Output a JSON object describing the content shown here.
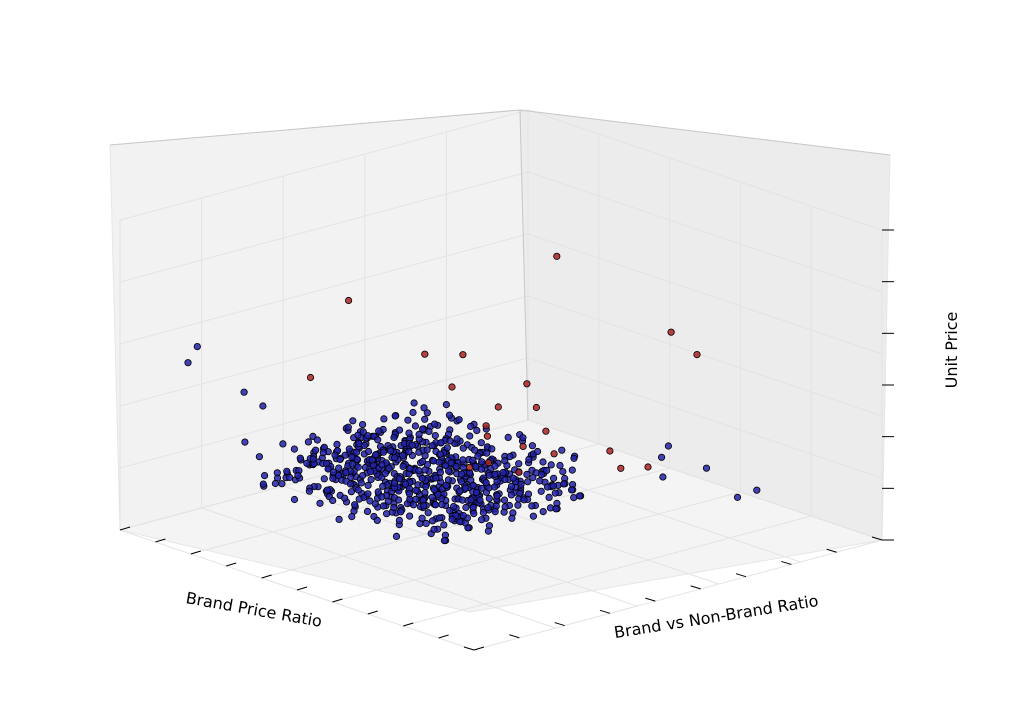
{
  "chart_data": {
    "type": "scatter",
    "projection": "3d",
    "xlabel": "Brand Price Ratio",
    "ylabel": "Brand vs Non-Brand Ratio",
    "zlabel": "Unit Price",
    "grid": true,
    "series": [
      {
        "color": "#2222aa",
        "count_estimate": 700,
        "cluster_points": [
          [
            0.55,
            0.25,
            0.12
          ],
          [
            0.5,
            0.3,
            0.1
          ],
          [
            0.6,
            0.35,
            0.14
          ],
          [
            0.45,
            0.28,
            0.13
          ],
          [
            0.58,
            0.42,
            0.16
          ],
          [
            0.4,
            0.2,
            0.11
          ]
        ],
        "scattered_points": [
          [
            0.92,
            0.1,
            0.55
          ],
          [
            0.88,
            0.08,
            0.58
          ],
          [
            0.85,
            0.18,
            0.3
          ],
          [
            0.8,
            0.12,
            0.42
          ],
          [
            0.78,
            0.15,
            0.38
          ],
          [
            0.7,
            0.2,
            0.2
          ],
          [
            0.65,
            0.18,
            0.16
          ],
          [
            0.62,
            0.15,
            0.12
          ],
          [
            0.35,
            0.8,
            0.35
          ],
          [
            0.3,
            0.85,
            0.28
          ],
          [
            0.25,
            0.88,
            0.18
          ],
          [
            0.22,
            0.9,
            0.2
          ],
          [
            0.28,
            0.7,
            0.25
          ],
          [
            0.32,
            0.75,
            0.22
          ]
        ]
      },
      {
        "color": "#aa2222",
        "points": [
          [
            0.45,
            0.6,
            0.92
          ],
          [
            0.7,
            0.3,
            0.75
          ],
          [
            0.3,
            0.75,
            0.68
          ],
          [
            0.28,
            0.8,
            0.62
          ],
          [
            0.55,
            0.45,
            0.58
          ],
          [
            0.6,
            0.4,
            0.58
          ],
          [
            0.62,
            0.5,
            0.52
          ],
          [
            0.48,
            0.55,
            0.5
          ],
          [
            0.75,
            0.25,
            0.5
          ],
          [
            0.5,
            0.6,
            0.45
          ],
          [
            0.55,
            0.55,
            0.45
          ],
          [
            0.58,
            0.55,
            0.4
          ],
          [
            0.52,
            0.65,
            0.4
          ],
          [
            0.62,
            0.6,
            0.4
          ],
          [
            0.55,
            0.62,
            0.35
          ],
          [
            0.5,
            0.65,
            0.32
          ],
          [
            0.6,
            0.58,
            0.3
          ],
          [
            0.62,
            0.55,
            0.28
          ],
          [
            0.56,
            0.62,
            0.27
          ],
          [
            0.4,
            0.8,
            0.3
          ],
          [
            0.45,
            0.75,
            0.35
          ],
          [
            0.38,
            0.7,
            0.25
          ]
        ]
      }
    ]
  }
}
